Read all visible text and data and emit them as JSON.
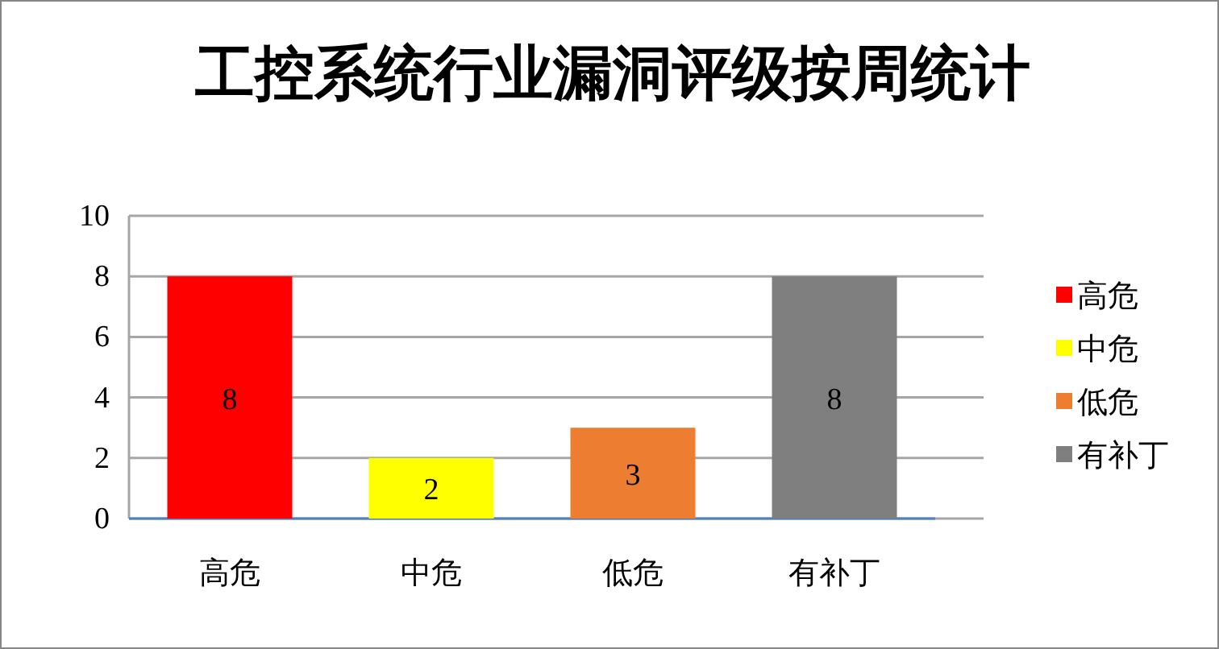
{
  "chart_data": {
    "type": "bar",
    "title": "工控系统行业漏洞评级按周统计",
    "categories": [
      "高危",
      "中危",
      "低危",
      "有补丁"
    ],
    "series": [
      {
        "name": "高危",
        "color": "#ff0000",
        "values": [
          8,
          null,
          null,
          null
        ]
      },
      {
        "name": "中危",
        "color": "#ffff00",
        "values": [
          null,
          2,
          null,
          null
        ]
      },
      {
        "name": "低危",
        "color": "#ed7d31",
        "values": [
          null,
          null,
          3,
          null
        ]
      },
      {
        "name": "有补丁",
        "color": "#7f7f7f",
        "values": [
          null,
          null,
          null,
          8
        ]
      }
    ],
    "ylim": [
      0,
      10
    ],
    "yticks": [
      0,
      2,
      4,
      6,
      8,
      10
    ],
    "grid": "y",
    "legend": "right",
    "data_labels": true
  }
}
